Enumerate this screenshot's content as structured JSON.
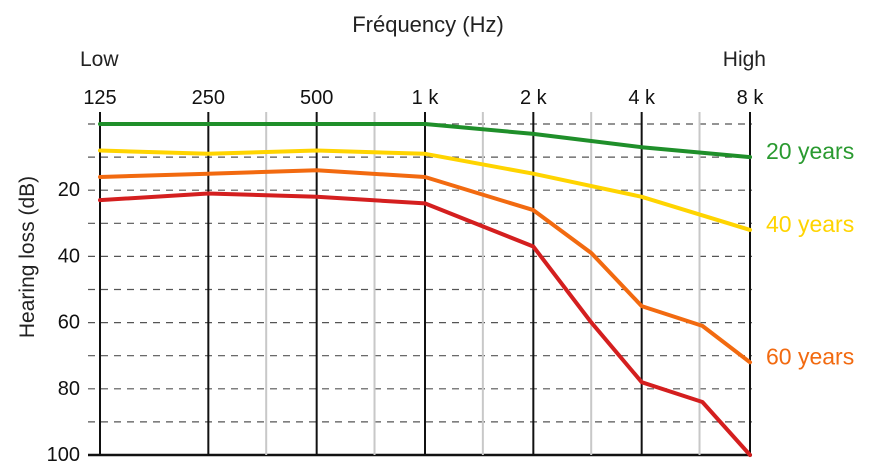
{
  "chart_data": {
    "type": "line",
    "title": "Fréquency (Hz)",
    "xlabel_low": "Low",
    "xlabel_high": "High",
    "ylabel": "Hearing loss (dB)",
    "x": [
      125,
      250,
      500,
      1000,
      2000,
      4000,
      8000
    ],
    "x_tick_labels": [
      "125",
      "250",
      "500",
      "1 k",
      "2 k",
      "4 k",
      "8 k"
    ],
    "x_scale": "log2",
    "y_ticks": [
      20,
      40,
      60,
      80,
      100
    ],
    "ylim": [
      0,
      100
    ],
    "y_inverted": true,
    "grid": {
      "vertical": true,
      "horizontal_dashed": true
    },
    "series": [
      {
        "name": "20 years",
        "color": "#1f8f2a",
        "points": [
          [
            125,
            0
          ],
          [
            250,
            0
          ],
          [
            500,
            0
          ],
          [
            1000,
            0
          ],
          [
            2000,
            3
          ],
          [
            4000,
            7
          ],
          [
            8000,
            10
          ]
        ]
      },
      {
        "name": "40 years",
        "color": "#ffd400",
        "points": [
          [
            125,
            8
          ],
          [
            250,
            9
          ],
          [
            500,
            8
          ],
          [
            1000,
            9
          ],
          [
            2000,
            15
          ],
          [
            4000,
            22
          ],
          [
            8000,
            32
          ]
        ]
      },
      {
        "name": "60 years",
        "color": "#f26a10",
        "points": [
          [
            125,
            16
          ],
          [
            250,
            15
          ],
          [
            500,
            14
          ],
          [
            1000,
            16
          ],
          [
            2000,
            26
          ],
          [
            2900,
            39
          ],
          [
            4000,
            55
          ],
          [
            5900,
            61
          ],
          [
            8000,
            72
          ]
        ]
      },
      {
        "name": "",
        "color": "#d41f1f",
        "points": [
          [
            125,
            23
          ],
          [
            250,
            21
          ],
          [
            500,
            22
          ],
          [
            1000,
            24
          ],
          [
            2000,
            37
          ],
          [
            2900,
            60
          ],
          [
            4000,
            78
          ],
          [
            5900,
            84
          ],
          [
            8000,
            100
          ]
        ]
      }
    ],
    "series_label_colors": {
      "20 years": "#2a9a30",
      "40 years": "#ffd400",
      "60 years": "#f26a10"
    }
  }
}
